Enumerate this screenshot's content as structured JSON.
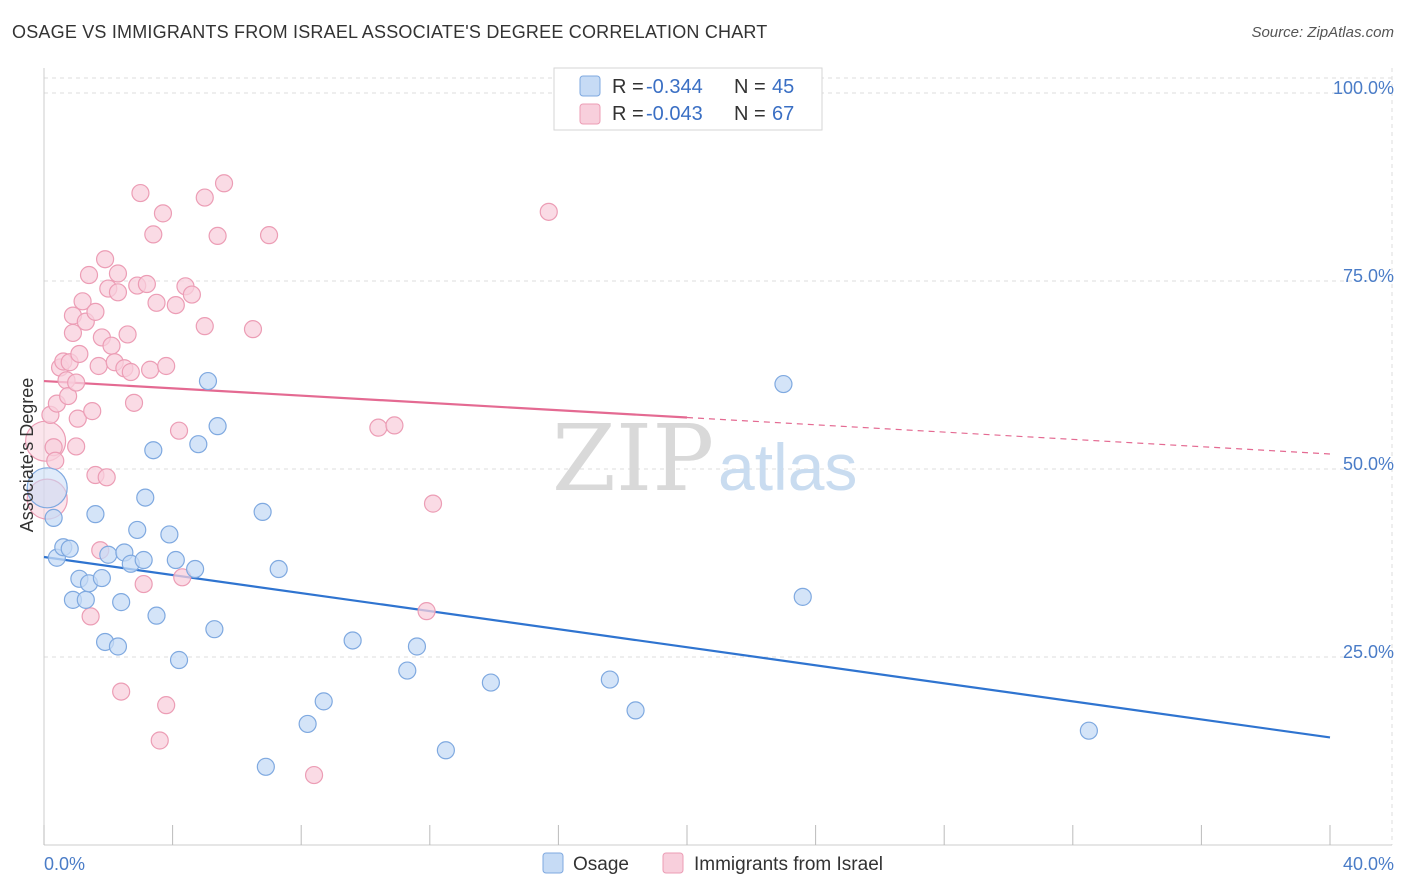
{
  "header": {
    "title": "OSAGE VS IMMIGRANTS FROM ISRAEL ASSOCIATE'S DEGREE CORRELATION CHART",
    "source": "Source: ZipAtlas.com"
  },
  "watermark": {
    "zip": "ZIP",
    "atlas": "atlas"
  },
  "colors": {
    "blue_fill": "#c6dbf5",
    "blue_stroke": "#7fa9e0",
    "blue_line": "#2f74d0",
    "pink_fill": "#f8cfdc",
    "pink_stroke": "#ec9db5",
    "pink_line": "#e46a92",
    "grid": "#dddddd",
    "tick_text": "#4a7cc7"
  },
  "legend": {
    "rows": [
      {
        "r_label": "R = ",
        "r_value": "-0.344",
        "n_label": "N = ",
        "n_value": "45",
        "series": "Osage"
      },
      {
        "r_label": "R = ",
        "r_value": "-0.043",
        "n_label": "N = ",
        "n_value": "67",
        "series": "Immigrants from Israel"
      }
    ]
  },
  "bottom_legend": {
    "items": [
      "Osage",
      "Immigrants from Israel"
    ]
  },
  "chart_data": {
    "type": "scatter",
    "title": "OSAGE VS IMMIGRANTS FROM ISRAEL ASSOCIATE'S DEGREE CORRELATION CHART",
    "xlabel": "",
    "ylabel": "Associate's Degree",
    "xlim": [
      0,
      40
    ],
    "ylim": [
      0,
      102
    ],
    "x_tick_labels": [
      "0.0%",
      "40.0%"
    ],
    "y_ticks": [
      25,
      50,
      75,
      100
    ],
    "y_tick_labels": [
      "25.0%",
      "50.0%",
      "75.0%",
      "100.0%"
    ],
    "grid": true,
    "series": [
      {
        "name": "Osage",
        "color": "blue",
        "trend": {
          "x0": 0,
          "y0": 38.3,
          "x1": 40,
          "y1": 14.3,
          "dashed_from": null
        },
        "points": [
          {
            "x": 0.1,
            "y": 47.5,
            "s": "l"
          },
          {
            "x": 0.3,
            "y": 43.5
          },
          {
            "x": 0.4,
            "y": 38.2
          },
          {
            "x": 0.6,
            "y": 39.6
          },
          {
            "x": 0.8,
            "y": 39.4
          },
          {
            "x": 0.9,
            "y": 32.6
          },
          {
            "x": 1.1,
            "y": 35.4
          },
          {
            "x": 1.3,
            "y": 32.6
          },
          {
            "x": 1.4,
            "y": 34.8
          },
          {
            "x": 1.6,
            "y": 44.0
          },
          {
            "x": 1.8,
            "y": 35.5
          },
          {
            "x": 1.9,
            "y": 27.0
          },
          {
            "x": 2.0,
            "y": 38.6
          },
          {
            "x": 2.3,
            "y": 26.4
          },
          {
            "x": 2.4,
            "y": 32.3
          },
          {
            "x": 2.5,
            "y": 38.9
          },
          {
            "x": 2.7,
            "y": 37.4
          },
          {
            "x": 2.9,
            "y": 41.9
          },
          {
            "x": 3.1,
            "y": 37.9
          },
          {
            "x": 3.15,
            "y": 46.2
          },
          {
            "x": 3.4,
            "y": 52.5
          },
          {
            "x": 3.5,
            "y": 30.5
          },
          {
            "x": 3.9,
            "y": 41.3
          },
          {
            "x": 4.1,
            "y": 37.9
          },
          {
            "x": 4.2,
            "y": 24.6
          },
          {
            "x": 4.7,
            "y": 36.7
          },
          {
            "x": 4.8,
            "y": 53.3
          },
          {
            "x": 5.1,
            "y": 61.7
          },
          {
            "x": 5.3,
            "y": 28.7
          },
          {
            "x": 5.4,
            "y": 55.7
          },
          {
            "x": 6.8,
            "y": 44.3
          },
          {
            "x": 6.9,
            "y": 10.4
          },
          {
            "x": 7.3,
            "y": 36.7
          },
          {
            "x": 8.2,
            "y": 16.1
          },
          {
            "x": 8.7,
            "y": 19.1
          },
          {
            "x": 9.6,
            "y": 27.2
          },
          {
            "x": 11.3,
            "y": 23.2
          },
          {
            "x": 11.6,
            "y": 26.4
          },
          {
            "x": 12.5,
            "y": 12.6
          },
          {
            "x": 13.9,
            "y": 21.6
          },
          {
            "x": 17.6,
            "y": 22.0
          },
          {
            "x": 18.4,
            "y": 17.9
          },
          {
            "x": 23.0,
            "y": 61.3
          },
          {
            "x": 23.6,
            "y": 33.0
          },
          {
            "x": 32.5,
            "y": 15.2
          }
        ]
      },
      {
        "name": "Immigrants from Israel",
        "color": "pink",
        "trend": {
          "x0": 0,
          "y0": 61.7,
          "x1": 40,
          "y1": 52.0,
          "dashed_from": 20
        },
        "points": [
          {
            "x": 0.05,
            "y": 53.7,
            "s": "l"
          },
          {
            "x": 0.1,
            "y": 46.0,
            "s": "l"
          },
          {
            "x": 0.2,
            "y": 57.2
          },
          {
            "x": 0.3,
            "y": 52.9
          },
          {
            "x": 0.35,
            "y": 51.1
          },
          {
            "x": 0.4,
            "y": 58.7
          },
          {
            "x": 0.5,
            "y": 63.5
          },
          {
            "x": 0.6,
            "y": 64.3
          },
          {
            "x": 0.7,
            "y": 61.8
          },
          {
            "x": 0.75,
            "y": 59.7
          },
          {
            "x": 0.8,
            "y": 64.2
          },
          {
            "x": 0.9,
            "y": 68.1
          },
          {
            "x": 0.9,
            "y": 70.4
          },
          {
            "x": 1.0,
            "y": 53.0
          },
          {
            "x": 1.0,
            "y": 61.5
          },
          {
            "x": 1.05,
            "y": 56.7
          },
          {
            "x": 1.1,
            "y": 65.3
          },
          {
            "x": 1.2,
            "y": 72.3
          },
          {
            "x": 1.3,
            "y": 69.6
          },
          {
            "x": 1.4,
            "y": 75.8
          },
          {
            "x": 1.45,
            "y": 30.4
          },
          {
            "x": 1.5,
            "y": 57.7
          },
          {
            "x": 1.6,
            "y": 70.9
          },
          {
            "x": 1.6,
            "y": 49.2
          },
          {
            "x": 1.7,
            "y": 63.7
          },
          {
            "x": 1.75,
            "y": 39.2
          },
          {
            "x": 1.8,
            "y": 67.5
          },
          {
            "x": 1.9,
            "y": 77.9
          },
          {
            "x": 1.95,
            "y": 48.9
          },
          {
            "x": 2.0,
            "y": 74.0
          },
          {
            "x": 2.1,
            "y": 66.4
          },
          {
            "x": 2.2,
            "y": 64.2
          },
          {
            "x": 2.3,
            "y": 73.5
          },
          {
            "x": 2.3,
            "y": 76.0
          },
          {
            "x": 2.4,
            "y": 20.4
          },
          {
            "x": 2.5,
            "y": 63.4
          },
          {
            "x": 2.6,
            "y": 67.9
          },
          {
            "x": 2.7,
            "y": 62.9
          },
          {
            "x": 2.8,
            "y": 58.8
          },
          {
            "x": 2.9,
            "y": 74.4
          },
          {
            "x": 3.0,
            "y": 86.7
          },
          {
            "x": 3.1,
            "y": 34.7
          },
          {
            "x": 3.2,
            "y": 74.6
          },
          {
            "x": 3.3,
            "y": 63.2
          },
          {
            "x": 3.4,
            "y": 81.2
          },
          {
            "x": 3.5,
            "y": 72.1
          },
          {
            "x": 3.6,
            "y": 13.9
          },
          {
            "x": 3.7,
            "y": 84.0
          },
          {
            "x": 3.8,
            "y": 18.6
          },
          {
            "x": 3.8,
            "y": 63.7
          },
          {
            "x": 4.1,
            "y": 71.8
          },
          {
            "x": 4.2,
            "y": 55.1
          },
          {
            "x": 4.3,
            "y": 35.6
          },
          {
            "x": 4.4,
            "y": 74.3
          },
          {
            "x": 4.6,
            "y": 73.2
          },
          {
            "x": 5.0,
            "y": 86.1
          },
          {
            "x": 5.0,
            "y": 69.0
          },
          {
            "x": 5.4,
            "y": 81.0
          },
          {
            "x": 5.6,
            "y": 88.0
          },
          {
            "x": 6.5,
            "y": 68.6
          },
          {
            "x": 7.0,
            "y": 81.1
          },
          {
            "x": 8.4,
            "y": 9.3
          },
          {
            "x": 10.4,
            "y": 55.5
          },
          {
            "x": 10.9,
            "y": 55.8
          },
          {
            "x": 11.9,
            "y": 31.1
          },
          {
            "x": 12.1,
            "y": 45.4
          },
          {
            "x": 15.7,
            "y": 84.2
          }
        ]
      }
    ]
  }
}
